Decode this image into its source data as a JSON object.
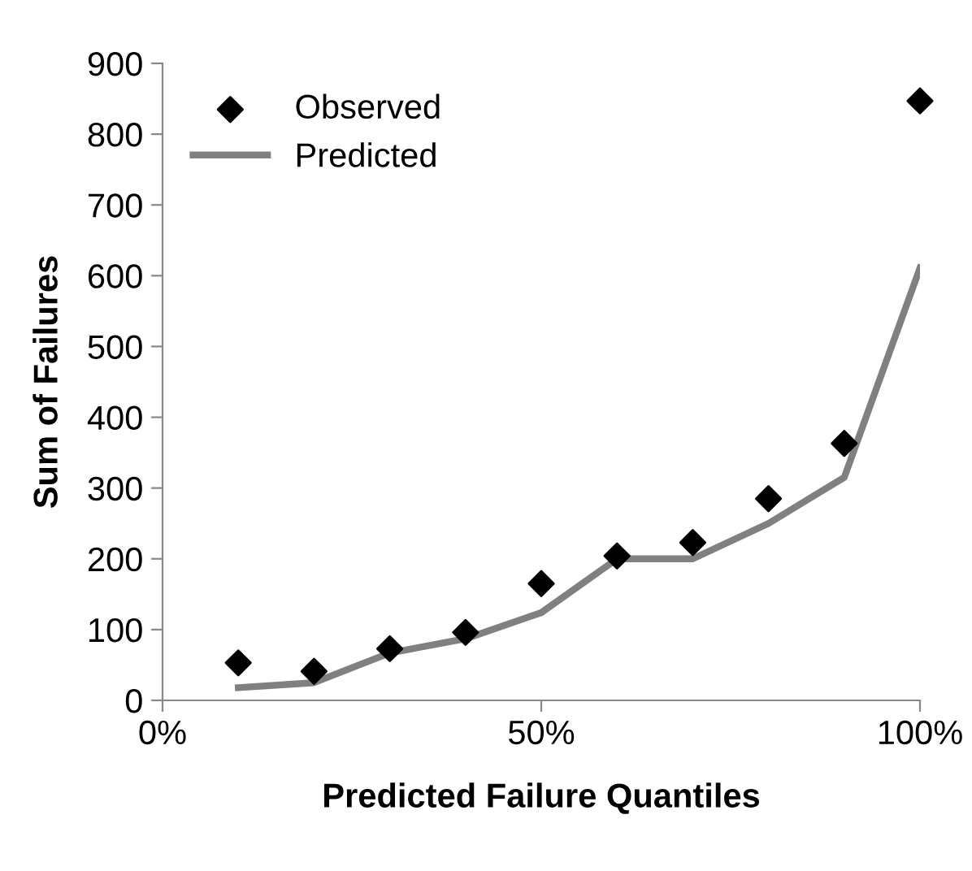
{
  "chart_data": {
    "type": "line",
    "xlabel": "Predicted Failure Quantiles",
    "ylabel": "Sum of Failures",
    "x": [
      10,
      20,
      30,
      40,
      50,
      60,
      70,
      80,
      90,
      100
    ],
    "series": [
      {
        "name": "Observed",
        "type": "scatter",
        "color": "#000000",
        "marker": "diamond",
        "values": [
          53,
          41,
          73,
          96,
          165,
          204,
          223,
          285,
          363,
          847
        ]
      },
      {
        "name": "Predicted",
        "color": "#808080",
        "marker": "none",
        "values": [
          18,
          25,
          67,
          87,
          124,
          200,
          200,
          250,
          315,
          611
        ]
      }
    ],
    "xlim": [
      0,
      100
    ],
    "xticks": [
      {
        "value": 0,
        "label": "0%"
      },
      {
        "value": 50,
        "label": "50%"
      },
      {
        "value": 100,
        "label": "100%"
      }
    ],
    "ylim": [
      0,
      900
    ],
    "yticks": [
      0,
      100,
      200,
      300,
      400,
      500,
      600,
      700,
      800,
      900
    ],
    "grid": false,
    "legend": "top left"
  }
}
